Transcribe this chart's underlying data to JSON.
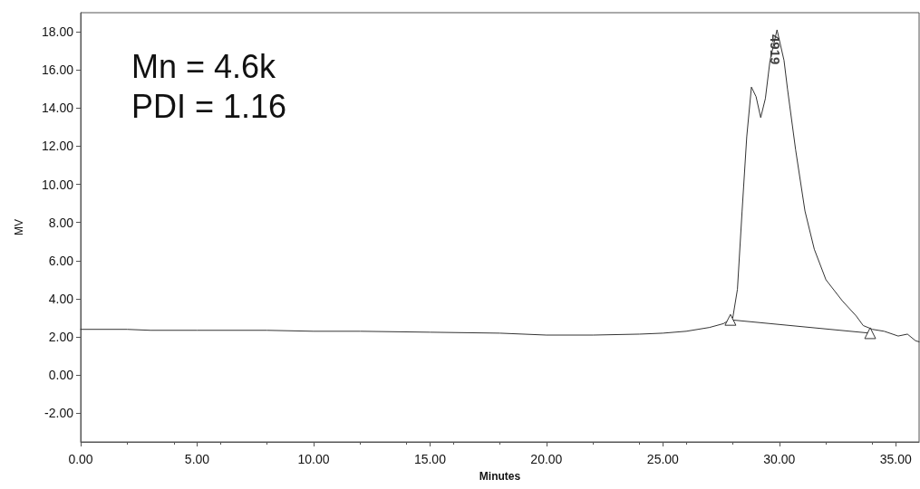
{
  "chart_data": {
    "type": "line",
    "xlabel": "Minutes",
    "ylabel": "MV",
    "xlim": [
      0,
      36
    ],
    "ylim": [
      -3.5,
      19
    ],
    "xticks": [
      {
        "value": 0,
        "label": "0.00"
      },
      {
        "value": 5,
        "label": "5.00"
      },
      {
        "value": 10,
        "label": "10.00"
      },
      {
        "value": 15,
        "label": "15.00"
      },
      {
        "value": 20,
        "label": "20.00"
      },
      {
        "value": 25,
        "label": "25.00"
      },
      {
        "value": 30,
        "label": "30.00"
      },
      {
        "value": 35,
        "label": "35.00"
      }
    ],
    "yticks": [
      {
        "value": -2,
        "label": "-2.00"
      },
      {
        "value": 0,
        "label": "0.00"
      },
      {
        "value": 2,
        "label": "2.00"
      },
      {
        "value": 4,
        "label": "4.00"
      },
      {
        "value": 6,
        "label": "6.00"
      },
      {
        "value": 8,
        "label": "8.00"
      },
      {
        "value": 10,
        "label": "10.00"
      },
      {
        "value": 12,
        "label": "12.00"
      },
      {
        "value": 14,
        "label": "14.00"
      },
      {
        "value": 16,
        "label": "16.00"
      },
      {
        "value": 18,
        "label": "18.00"
      }
    ],
    "grid": false,
    "marker": "none",
    "line_style": "solid",
    "series": [
      {
        "color": "#333333",
        "x": [
          0,
          2,
          3,
          5,
          8,
          10,
          12,
          15,
          18,
          20,
          22,
          24,
          25,
          26,
          27,
          27.6,
          28.0,
          28.2,
          28.4,
          28.6,
          28.8,
          29.0,
          29.2,
          29.4,
          29.6,
          29.9,
          30.2,
          30.35,
          30.7,
          31.1,
          31.5,
          32.0,
          32.7,
          33.3,
          33.6,
          34.0,
          34.5,
          35.1,
          35.5,
          35.85,
          36
        ],
        "values": [
          2.4,
          2.4,
          2.35,
          2.35,
          2.35,
          2.3,
          2.3,
          2.25,
          2.2,
          2.1,
          2.1,
          2.15,
          2.2,
          2.3,
          2.5,
          2.7,
          3.0,
          4.5,
          8.6,
          12.5,
          15.1,
          14.6,
          13.5,
          14.5,
          16.5,
          18.1,
          16.5,
          15.0,
          11.8,
          8.6,
          6.6,
          5.0,
          3.9,
          3.1,
          2.6,
          2.4,
          2.3,
          2.05,
          2.15,
          1.8,
          1.75
        ]
      },
      {
        "color": "#333333",
        "marker": "triangle",
        "x": [
          27.9,
          33.9
        ],
        "values": [
          2.9,
          2.2
        ]
      }
    ],
    "annotations": [
      "Mn = 4.6k",
      "PDI = 1.16",
      {
        "text": "4919",
        "x": 29.9,
        "y": 18.1
      }
    ]
  }
}
